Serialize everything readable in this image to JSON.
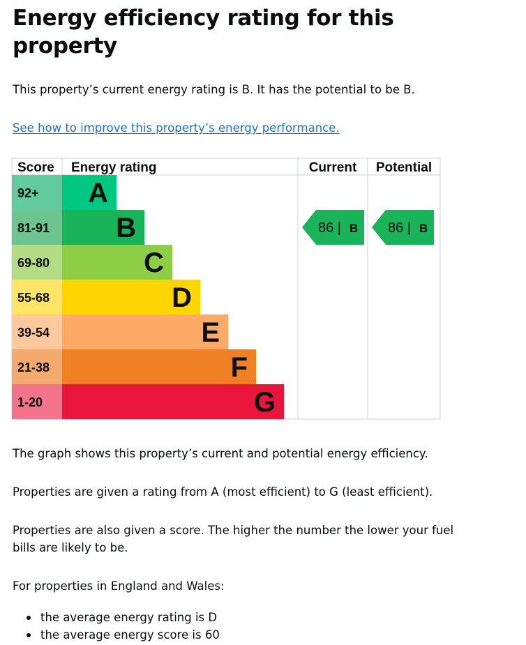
{
  "page": {
    "title": "Energy efficiency rating for this property",
    "intro": "This property’s current energy rating is B. It has the potential to be B.",
    "improve_link": "See how to improve this property’s energy performance.",
    "graph_note": "The graph shows this property’s current and potential energy efficiency.",
    "ratings_note": "Properties are given a rating from A (most efficient) to G (least efficient).",
    "score_note": "Properties are also given a score. The higher the number the lower your fuel bills are likely to be.",
    "england_wales": "For properties in England and Wales:",
    "bullets": [
      "the average energy rating is D",
      "the average energy score is 60"
    ]
  },
  "chart_data": {
    "type": "bar",
    "headers": [
      "Score",
      "Energy rating",
      "Current",
      "Potential"
    ],
    "bands": [
      {
        "letter": "A",
        "score_range": "92+",
        "color": "#00c781",
        "score_bg": "#63c99e"
      },
      {
        "letter": "B",
        "score_range": "81-91",
        "color": "#19b459",
        "score_bg": "#6cc58e"
      },
      {
        "letter": "C",
        "score_range": "69-80",
        "color": "#8dce46",
        "score_bg": "#b3dc85"
      },
      {
        "letter": "D",
        "score_range": "55-68",
        "color": "#ffd500",
        "score_bg": "#ffe466"
      },
      {
        "letter": "E",
        "score_range": "39-54",
        "color": "#fcaa65",
        "score_bg": "#fdc99d"
      },
      {
        "letter": "F",
        "score_range": "21-38",
        "color": "#ef8023",
        "score_bg": "#f4a96d"
      },
      {
        "letter": "G",
        "score_range": "1-20",
        "color": "#e9153b",
        "score_bg": "#f2738a"
      }
    ],
    "current": {
      "score": 86,
      "letter": "B",
      "label": "86 |",
      "color": "#19b459"
    },
    "potential": {
      "score": 86,
      "letter": "B",
      "label": "86 |",
      "color": "#19b459"
    },
    "border_color": "#cfd1d3"
  }
}
